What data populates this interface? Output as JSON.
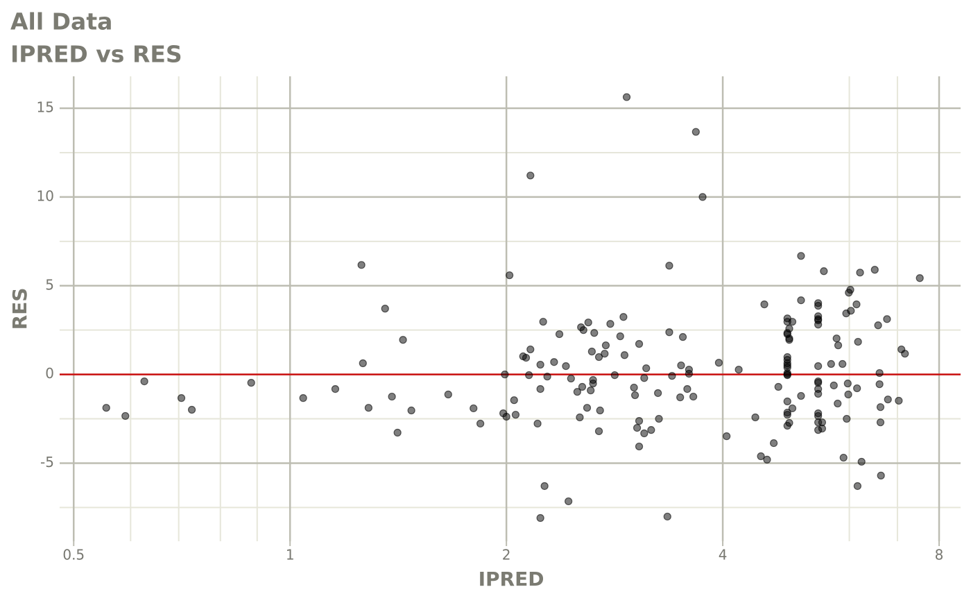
{
  "chart_data": {
    "type": "scatter",
    "title": "All Data",
    "subtitle": "IPRED vs RES",
    "x_label": "IPRED",
    "y_label": "RES",
    "xscale": "log",
    "xlim": [
      0.478,
      8.57
    ],
    "ylim": [
      -9.4,
      16.8
    ],
    "xticks": [
      0.5,
      1,
      2,
      4,
      8
    ],
    "yticks": [
      -5,
      0,
      5,
      10,
      15
    ],
    "x_minor_grid": [
      0.6,
      0.7,
      0.8,
      0.9,
      6,
      7
    ],
    "y_minor_grid": [
      -7.5,
      -2.5,
      2.5,
      7.5,
      12.5
    ],
    "grid": true,
    "hline": {
      "value": 0,
      "color": "#cc1111"
    },
    "x": [
      0.555,
      0.59,
      0.627,
      0.706,
      0.73,
      0.883,
      1.043,
      1.156,
      1.257,
      1.263,
      1.286,
      1.356,
      1.386,
      1.411,
      1.436,
      1.475,
      1.66,
      1.8,
      1.84,
      1.98,
      1.99,
      2.0,
      2.02,
      2.05,
      2.06,
      2.11,
      2.13,
      2.15,
      2.16,
      2.16,
      2.21,
      2.23,
      2.23,
      2.23,
      2.25,
      2.26,
      2.28,
      2.33,
      2.37,
      2.42,
      2.44,
      2.46,
      2.51,
      2.53,
      2.54,
      2.55,
      2.56,
      2.59,
      2.6,
      2.62,
      2.63,
      2.64,
      2.64,
      2.65,
      2.69,
      2.69,
      2.7,
      2.74,
      2.75,
      2.79,
      2.83,
      2.88,
      2.91,
      2.92,
      2.94,
      3.01,
      3.02,
      3.04,
      3.06,
      3.06,
      3.06,
      3.11,
      3.11,
      3.13,
      3.18,
      3.25,
      3.26,
      3.35,
      3.37,
      3.37,
      3.4,
      3.49,
      3.5,
      3.52,
      3.57,
      3.59,
      3.59,
      3.64,
      3.67,
      3.75,
      3.95,
      4.05,
      4.21,
      4.44,
      4.52,
      4.57,
      4.61,
      4.71,
      4.78,
      4.92,
      4.92,
      4.92,
      4.92,
      4.92,
      4.92,
      4.92,
      4.92,
      4.92,
      4.92,
      4.92,
      4.92,
      4.92,
      4.92,
      4.92,
      4.92,
      4.95,
      4.95,
      4.95,
      4.95,
      5.0,
      5.0,
      5.14,
      5.14,
      5.14,
      5.43,
      5.43,
      5.43,
      5.43,
      5.43,
      5.43,
      5.43,
      5.43,
      5.43,
      5.43,
      5.43,
      5.43,
      5.43,
      5.43,
      5.43,
      5.5,
      5.5,
      5.53,
      5.66,
      5.71,
      5.76,
      5.78,
      5.79,
      5.87,
      5.89,
      5.94,
      5.95,
      5.97,
      5.98,
      5.99,
      6.02,
      6.03,
      6.14,
      6.15,
      6.17,
      6.16,
      6.21,
      6.24,
      6.51,
      6.58,
      6.61,
      6.61,
      6.63,
      6.63,
      6.64,
      6.77,
      6.79,
      7.03,
      7.09,
      7.17,
      7.52
    ],
    "series": [
      {
        "color": "#000000",
        "values": [
          -1.88,
          -2.34,
          -0.39,
          -1.33,
          -1.99,
          -0.47,
          -1.33,
          -0.82,
          6.17,
          0.63,
          -1.88,
          3.71,
          -1.25,
          -3.28,
          1.95,
          -2.03,
          -1.13,
          -1.91,
          -2.77,
          -2.19,
          0,
          -2.38,
          5.59,
          -1.45,
          -2.27,
          1.02,
          0.94,
          -0.04,
          1.41,
          11.21,
          -2.77,
          0.55,
          -0.82,
          -8.09,
          2.97,
          -6.29,
          -0.12,
          0.7,
          2.27,
          0.47,
          -7.15,
          -0.23,
          -0.98,
          -2.42,
          2.66,
          -0.7,
          2.5,
          -1.88,
          2.93,
          -0.9,
          1.29,
          -0.51,
          -0.31,
          2.34,
          0.98,
          -3.2,
          -2.03,
          1.17,
          1.64,
          2.85,
          -0.04,
          2.15,
          3.24,
          1.09,
          15.63,
          -0.74,
          -1.17,
          -3.01,
          1.72,
          -2.62,
          -4.06,
          -0.2,
          -3.32,
          0.35,
          -3.13,
          -1.05,
          -2.5,
          -8.01,
          6.13,
          2.38,
          -0.08,
          -1.29,
          0.51,
          2.11,
          -0.82,
          0.27,
          0.04,
          -1.25,
          13.67,
          10.0,
          0.66,
          -3.48,
          0.27,
          -2.42,
          -4.61,
          3.95,
          -4.8,
          -3.87,
          -0.7,
          3.16,
          2.97,
          2.34,
          2.27,
          0.98,
          0.82,
          0.63,
          0.51,
          0.39,
          0.08,
          0,
          -0.04,
          -1.52,
          -2.15,
          -2.27,
          -2.89,
          2.58,
          2.03,
          1.95,
          -2.73,
          2.97,
          -1.91,
          6.68,
          4.18,
          -1.21,
          4.02,
          3.87,
          3.28,
          3.12,
          3.05,
          2.81,
          0.47,
          -0.39,
          -0.47,
          -0.82,
          -1.09,
          -2.19,
          -2.34,
          -2.7,
          -3.13,
          -2.7,
          -3.05,
          5.82,
          0.59,
          -0.62,
          2.03,
          -1.64,
          1.64,
          0.59,
          -4.69,
          3.44,
          -2.5,
          -0.51,
          -1.13,
          4.61,
          4.77,
          3.59,
          3.95,
          -0.78,
          1.84,
          -6.29,
          5.74,
          -4.92,
          5.9,
          2.77,
          0.08,
          -0.55,
          -1.84,
          -2.7,
          -5.7,
          3.12,
          -1.41,
          -1.48,
          1.41,
          1.17,
          5.43
        ]
      }
    ]
  }
}
